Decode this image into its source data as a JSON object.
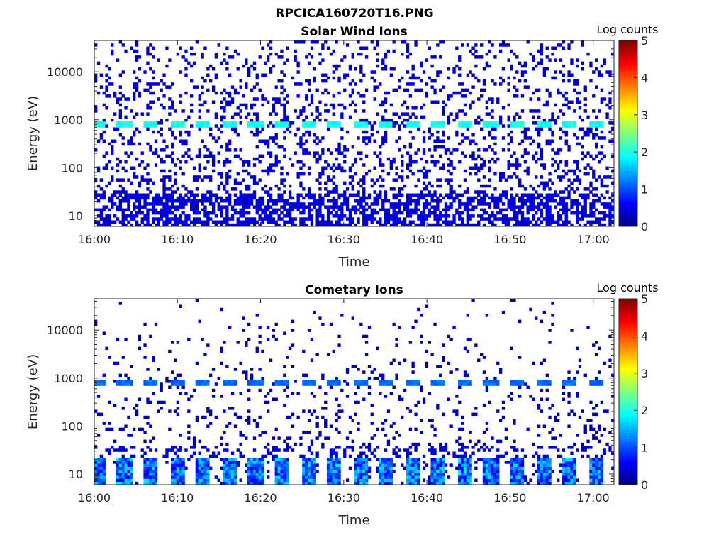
{
  "figure_title": "RPCICA160720T16.PNG",
  "chart_data": [
    {
      "type": "heatmap",
      "title": "Solar Wind Ions",
      "xlabel": "Time",
      "ylabel": "Energy (eV)",
      "x_tick_labels": [
        "16:00",
        "16:10",
        "16:20",
        "16:30",
        "16:40",
        "16:50",
        "17:00"
      ],
      "x_tick_minutes": [
        0,
        10,
        20,
        30,
        40,
        50,
        60
      ],
      "xlim_minutes": [
        0,
        62.5
      ],
      "y_scale": "log",
      "y_tick_labels": [
        "10",
        "100",
        "1000",
        "10000"
      ],
      "y_tick_values": [
        10,
        100,
        1000,
        10000
      ],
      "ylim": [
        6,
        45000
      ],
      "colorbar": {
        "label": "Log counts",
        "ticks": [
          0,
          1,
          2,
          3,
          4,
          5
        ],
        "range": [
          0,
          5
        ],
        "colormap": "jet"
      },
      "features": {
        "periodic_peak_energy_eV": 790,
        "periodic_peak_log_counts": 1.8,
        "periodic_peak_times_minutes": [
          0.5,
          3.6,
          6.8,
          9.9,
          13.1,
          16.2,
          19.4,
          22.6,
          25.7,
          28.8,
          32.0,
          35.1,
          38.3,
          41.4,
          44.6,
          47.7,
          50.9,
          54.0,
          57.2,
          60.3
        ],
        "background_log_counts": 0.3,
        "low_energy_band_eV": [
          6,
          30
        ],
        "low_energy_band_log_counts": 0.3
      }
    },
    {
      "type": "heatmap",
      "title": "Cometary Ions",
      "xlabel": "Time",
      "ylabel": "Energy (eV)",
      "x_tick_labels": [
        "16:00",
        "16:10",
        "16:20",
        "16:30",
        "16:40",
        "16:50",
        "17:00"
      ],
      "x_tick_minutes": [
        0,
        10,
        20,
        30,
        40,
        50,
        60
      ],
      "xlim_minutes": [
        0,
        62.5
      ],
      "y_scale": "log",
      "y_tick_labels": [
        "10",
        "100",
        "1000",
        "10000"
      ],
      "y_tick_values": [
        10,
        100,
        1000,
        10000
      ],
      "ylim": [
        6,
        45000
      ],
      "colorbar": {
        "label": "Log counts",
        "ticks": [
          0,
          1,
          2,
          3,
          4,
          5
        ],
        "range": [
          0,
          5
        ],
        "colormap": "jet"
      },
      "features": {
        "periodic_peak_energy_eV": 800,
        "periodic_peak_log_counts": 1.0,
        "periodic_peak_times_minutes": [
          0.5,
          3.6,
          6.8,
          9.9,
          13.1,
          16.2,
          19.4,
          22.6,
          25.7,
          28.8,
          32.0,
          35.1,
          38.3,
          41.4,
          44.6,
          47.7,
          50.9,
          54.0,
          57.2,
          60.3
        ],
        "low_energy_band_eV": [
          6,
          22
        ],
        "low_energy_band_log_counts": [
          0.5,
          1.8
        ],
        "sparse_background_log_counts": 0.2
      }
    }
  ]
}
